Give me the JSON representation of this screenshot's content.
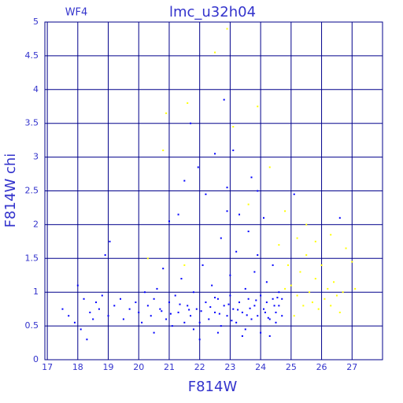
{
  "chart_data": {
    "type": "scatter",
    "title": "lmc_u32h04",
    "subtitle": "WF4",
    "x_label": "F814W",
    "y_label": "F814W chi",
    "xlim": [
      16.92,
      28
    ],
    "ylim": [
      0,
      5
    ],
    "xticks": [
      17,
      18,
      19,
      20,
      21,
      22,
      23,
      24,
      25,
      26,
      27
    ],
    "yticks": [
      0,
      0.5,
      1,
      1.5,
      2,
      2.5,
      3,
      3.5,
      4,
      4.5,
      5
    ],
    "grid": true,
    "grid_color": "#00008b",
    "series": [
      {
        "color": "#0000ff",
        "x": [
          17.5,
          17.7,
          17.9,
          18.0,
          18.1,
          18.2,
          18.3,
          18.4,
          18.5,
          18.6,
          18.7,
          18.8,
          18.9,
          19.0,
          19.05,
          19.2,
          19.4,
          19.5,
          19.7,
          19.9,
          20.0,
          20.1,
          20.2,
          20.3,
          20.4,
          20.5,
          20.6,
          20.7,
          20.8,
          20.9,
          21.0,
          21.0,
          21.1,
          21.2,
          21.3,
          21.4,
          21.5,
          21.5,
          21.6,
          21.7,
          21.7,
          21.8,
          21.9,
          21.95,
          22.0,
          22.1,
          22.2,
          22.2,
          22.3,
          22.4,
          22.5,
          22.5,
          22.6,
          22.7,
          22.7,
          22.8,
          22.8,
          22.9,
          22.9,
          23.0,
          23.0,
          23.1,
          23.1,
          23.2,
          23.2,
          23.3,
          23.3,
          23.4,
          23.5,
          23.5,
          23.6,
          23.6,
          23.7,
          23.7,
          23.8,
          23.8,
          23.9,
          23.9,
          24.0,
          24.0,
          24.1,
          24.1,
          24.2,
          24.2,
          24.3,
          24.3,
          24.4,
          24.4,
          24.5,
          24.5,
          24.6,
          24.6,
          24.7,
          24.7,
          25.1,
          26.6,
          22.0,
          23.4,
          22.6,
          21.8,
          20.5,
          21.3,
          22.9,
          23.9,
          22.05,
          22.35,
          22.65,
          22.95,
          23.25,
          23.55,
          23.85,
          24.15,
          24.45,
          21.65,
          21.35,
          21.05,
          20.75,
          22.5,
          23.05,
          23.65,
          24.25,
          24.55
        ],
        "values": [
          0.75,
          0.65,
          0.55,
          1.1,
          0.45,
          0.9,
          0.3,
          0.7,
          0.6,
          0.85,
          0.75,
          0.95,
          1.55,
          0.65,
          1.75,
          0.8,
          0.9,
          0.6,
          0.75,
          0.85,
          0.7,
          0.55,
          1.0,
          0.8,
          0.65,
          0.9,
          1.05,
          0.75,
          1.35,
          0.6,
          0.85,
          2.05,
          0.5,
          0.95,
          0.7,
          1.2,
          0.55,
          2.65,
          0.8,
          3.5,
          0.65,
          1.0,
          0.75,
          2.85,
          0.55,
          1.4,
          0.85,
          2.45,
          0.6,
          1.1,
          0.7,
          3.05,
          0.9,
          1.8,
          0.5,
          3.85,
          0.8,
          0.65,
          2.2,
          0.95,
          1.25,
          0.75,
          3.1,
          0.55,
          1.6,
          0.85,
          2.15,
          0.7,
          1.05,
          0.45,
          0.9,
          1.9,
          0.6,
          2.7,
          0.8,
          1.3,
          0.65,
          1.55,
          0.95,
          0.4,
          0.75,
          2.1,
          0.85,
          1.15,
          0.6,
          0.35,
          0.9,
          1.4,
          0.7,
          0.55,
          0.8,
          1.0,
          0.65,
          0.9,
          2.45,
          2.1,
          0.3,
          0.35,
          0.4,
          0.45,
          0.4,
          2.15,
          2.55,
          2.5,
          0.72,
          0.78,
          0.68,
          0.82,
          0.74,
          0.66,
          0.88,
          0.7,
          0.8,
          0.74,
          0.82,
          0.68,
          0.72,
          0.92,
          0.58,
          0.76,
          0.62,
          0.92
        ]
      },
      {
        "color": "#ffff00",
        "x": [
          20.8,
          20.9,
          21.6,
          22.5,
          23.1,
          23.9,
          23.6,
          24.3,
          24.8,
          25.2,
          24.9,
          25.0,
          25.2,
          25.3,
          25.4,
          25.5,
          25.6,
          25.7,
          25.8,
          25.9,
          26.0,
          26.1,
          26.2,
          26.3,
          26.4,
          26.5,
          26.6,
          26.7,
          27.0,
          27.1,
          26.8,
          25.1,
          24.6,
          24.8,
          25.5,
          25.8,
          21.5,
          20.3,
          22.9,
          26.3
        ],
        "values": [
          3.1,
          3.65,
          3.8,
          4.55,
          3.45,
          3.75,
          2.3,
          2.85,
          2.2,
          1.8,
          1.4,
          1.1,
          0.95,
          1.3,
          0.8,
          1.55,
          1.0,
          0.85,
          1.2,
          0.75,
          1.4,
          0.9,
          1.05,
          0.8,
          1.15,
          0.95,
          0.7,
          1.0,
          1.45,
          1.05,
          1.65,
          0.65,
          1.7,
          1.05,
          2.0,
          1.75,
          1.4,
          1.5,
          4.9,
          1.85
        ]
      }
    ]
  }
}
